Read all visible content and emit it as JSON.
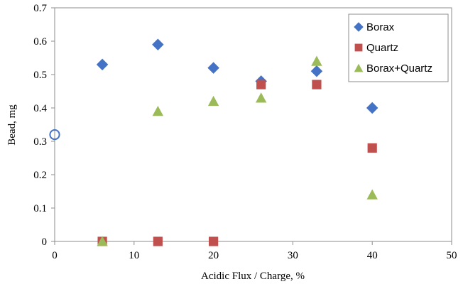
{
  "chart_data": {
    "type": "scatter",
    "xlabel": "Acidic Flux / Charge, %",
    "ylabel": "Bead, mg",
    "xlim": [
      0,
      50
    ],
    "ylim": [
      0,
      0.7
    ],
    "xticks": [
      0,
      10,
      20,
      30,
      40,
      50
    ],
    "yticks": [
      0,
      0.1,
      0.2,
      0.3,
      0.4,
      0.5,
      0.6,
      0.7
    ],
    "ytick_labels": [
      "0",
      "0.1",
      "0.2",
      "0.3",
      "0.4",
      "0.5",
      "0.6",
      "0.7"
    ],
    "grid": false,
    "legend_position": "top-right",
    "series": [
      {
        "name": "Borax",
        "marker": "diamond",
        "color": "#4472c4",
        "x": [
          6,
          13,
          20,
          26,
          33,
          40
        ],
        "y": [
          0.53,
          0.59,
          0.52,
          0.48,
          0.51,
          0.4
        ]
      },
      {
        "name": "Quartz",
        "marker": "square",
        "color": "#c0504d",
        "x": [
          6,
          13,
          20,
          26,
          33,
          40
        ],
        "y": [
          0,
          0,
          0,
          0.47,
          0.47,
          0.28
        ]
      },
      {
        "name": "Borax+Quartz",
        "marker": "triangle",
        "color": "#9bbb59",
        "x": [
          6,
          13,
          20,
          26,
          33,
          40
        ],
        "y": [
          0,
          0.39,
          0.42,
          0.43,
          0.54,
          0.14
        ]
      }
    ],
    "extra_points": [
      {
        "marker": "open-circle",
        "color": "#4472c4",
        "x": 0,
        "y": 0.32
      }
    ]
  }
}
